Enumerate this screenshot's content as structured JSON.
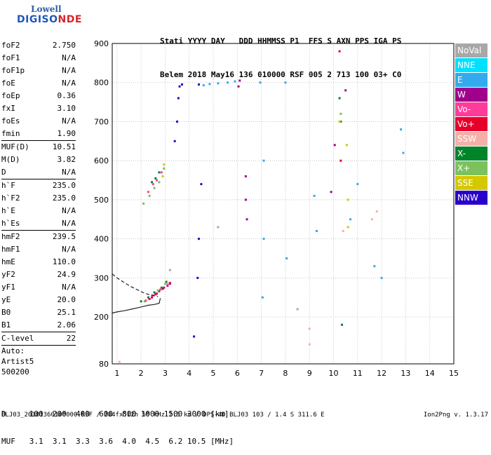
{
  "logo": {
    "line1": "Lowell",
    "line2a": "DIGISO",
    "line2b": "NDE"
  },
  "header": {
    "line1": "Stati YYYY DAY   DDD HHMMSS P1  FFS S AXN PPS IGA PS",
    "line2": "Belem 2018 May16 136 010000 RSF 005 2 713 100 03+ C0"
  },
  "params": [
    [
      {
        "k": "foF2",
        "v": "2.750"
      },
      {
        "k": "foF1",
        "v": "N/A"
      },
      {
        "k": "foF1p",
        "v": "N/A"
      },
      {
        "k": "foE",
        "v": "N/A"
      },
      {
        "k": "foEp",
        "v": "0.36"
      },
      {
        "k": "fxI",
        "v": "3.10"
      },
      {
        "k": "foEs",
        "v": "N/A"
      },
      {
        "k": "fmin",
        "v": "1.90"
      }
    ],
    [
      {
        "k": "MUF(D)",
        "v": "10.51"
      },
      {
        "k": "M(D)",
        "v": "3.82"
      },
      {
        "k": "D",
        "v": "N/A"
      }
    ],
    [
      {
        "k": "h`F",
        "v": "235.0"
      },
      {
        "k": "h`F2",
        "v": "235.0"
      },
      {
        "k": "h`E",
        "v": "N/A"
      },
      {
        "k": "h`Es",
        "v": "N/A"
      }
    ],
    [
      {
        "k": "hmF2",
        "v": "239.5"
      },
      {
        "k": "hmF1",
        "v": "N/A"
      },
      {
        "k": "hmE",
        "v": "110.0"
      },
      {
        "k": "yF2",
        "v": "24.9"
      },
      {
        "k": "yF1",
        "v": "N/A"
      },
      {
        "k": "yE",
        "v": "20.0"
      },
      {
        "k": "B0",
        "v": "25.1"
      },
      {
        "k": "B1",
        "v": "2.06"
      }
    ],
    [
      {
        "k": "C-level",
        "v": "22"
      }
    ]
  ],
  "autoscaling": {
    "label": "Auto:",
    "artist": "Artist5",
    "version": "500200"
  },
  "legend": [
    {
      "label": "NoVal",
      "color": "#a8a8a8"
    },
    {
      "label": "NNE",
      "color": "#00e0ff"
    },
    {
      "label": "E",
      "color": "#33aaee"
    },
    {
      "label": "W",
      "color": "#a0008c"
    },
    {
      "label": "Vo-",
      "color": "#ff3c9a"
    },
    {
      "label": "Vo+",
      "color": "#e8002c"
    },
    {
      "label": "SSW",
      "color": "#f4b0a8"
    },
    {
      "label": "X-",
      "color": "#00842a"
    },
    {
      "label": "X+",
      "color": "#7cc25c"
    },
    {
      "label": "SSE",
      "color": "#d4c800"
    },
    {
      "label": "NNW",
      "color": "#2800cc"
    }
  ],
  "dmuf": {
    "d_row": "D     100  200  400  600  800 1000 1500 3000 [km]",
    "muf_row": "MUF   3.1  3.1  3.3  3.6  4.0  4.5  6.2 10.5 [MHz]"
  },
  "footer": "BLJ03_20181360100000.RSF / 284fx512h 50 kHz 2.5 km / DPS-4D BLJ03 103 / 1.4 S 311.6 E",
  "version_text": "Ion2Png v. 1.3.17",
  "chart_data": {
    "type": "scatter",
    "title": "",
    "xlabel": "",
    "ylabel": "",
    "xlim": [
      0.8,
      15
    ],
    "ylim": [
      80,
      900
    ],
    "x_ticks": [
      1,
      2,
      3,
      4,
      5,
      6,
      7,
      8,
      9,
      10,
      11,
      12,
      13,
      14,
      15
    ],
    "y_ticks": [
      80,
      200,
      300,
      400,
      500,
      600,
      700,
      800,
      900
    ],
    "grid": true,
    "legend_placement": "right",
    "series": [
      {
        "name": "W",
        "color": "#a0008c",
        "points": [
          [
            2.45,
            250
          ],
          [
            2.6,
            258
          ],
          [
            2.75,
            266
          ],
          [
            2.9,
            272
          ],
          [
            3.1,
            280
          ],
          [
            3.2,
            285
          ],
          [
            6.05,
            790
          ],
          [
            6.1,
            805
          ],
          [
            6.35,
            560
          ],
          [
            6.35,
            500
          ],
          [
            6.4,
            450
          ],
          [
            9.9,
            520
          ],
          [
            10.05,
            640
          ],
          [
            10.5,
            780
          ]
        ]
      },
      {
        "name": "NNW",
        "color": "#2800cc",
        "points": [
          [
            3.4,
            650
          ],
          [
            3.5,
            700
          ],
          [
            3.55,
            760
          ],
          [
            3.6,
            790
          ],
          [
            3.7,
            795
          ],
          [
            4.2,
            150
          ],
          [
            4.35,
            300
          ],
          [
            4.4,
            795
          ],
          [
            4.5,
            540
          ],
          [
            4.4,
            400
          ]
        ]
      },
      {
        "name": "E",
        "color": "#33aaee",
        "points": [
          [
            4.6,
            793
          ],
          [
            4.85,
            796
          ],
          [
            5.2,
            798
          ],
          [
            5.6,
            800
          ],
          [
            5.9,
            803
          ],
          [
            6.95,
            800
          ],
          [
            7.1,
            600
          ],
          [
            7.1,
            400
          ],
          [
            7.05,
            250
          ],
          [
            8.0,
            800
          ],
          [
            8.05,
            350
          ],
          [
            9.2,
            510
          ],
          [
            9.3,
            420
          ],
          [
            10.7,
            450
          ],
          [
            11.0,
            540
          ],
          [
            11.7,
            330
          ],
          [
            12.0,
            300
          ],
          [
            12.8,
            680
          ],
          [
            12.9,
            620
          ]
        ]
      },
      {
        "name": "X-",
        "color": "#00842a",
        "points": [
          [
            2.0,
            240
          ],
          [
            2.3,
            250
          ],
          [
            2.55,
            263
          ],
          [
            2.85,
            275
          ],
          [
            3.05,
            290
          ],
          [
            2.45,
            545
          ],
          [
            2.6,
            555
          ],
          [
            2.75,
            570
          ],
          [
            10.25,
            760
          ],
          [
            10.3,
            700
          ],
          [
            10.35,
            180
          ]
        ]
      },
      {
        "name": "X+",
        "color": "#7cc25c",
        "points": [
          [
            2.15,
            240
          ],
          [
            2.45,
            255
          ],
          [
            2.7,
            268
          ],
          [
            3.0,
            285
          ],
          [
            2.1,
            490
          ],
          [
            2.35,
            510
          ],
          [
            2.55,
            530
          ],
          [
            2.75,
            545
          ],
          [
            2.95,
            580
          ],
          [
            10.3,
            720
          ]
        ]
      },
      {
        "name": "Vo-",
        "color": "#ff3c9a",
        "points": [
          [
            2.2,
            242
          ],
          [
            2.5,
            255
          ],
          [
            2.8,
            270
          ],
          [
            3.1,
            283
          ],
          [
            2.3,
            520
          ],
          [
            2.5,
            540
          ],
          [
            2.65,
            550
          ],
          [
            2.85,
            570
          ]
        ]
      },
      {
        "name": "Vo+",
        "color": "#e8002c",
        "points": [
          [
            2.35,
            246
          ],
          [
            2.65,
            260
          ],
          [
            2.95,
            275
          ],
          [
            3.2,
            287
          ],
          [
            10.25,
            880
          ],
          [
            10.3,
            600
          ]
        ]
      },
      {
        "name": "SSE",
        "color": "#d4c800",
        "points": [
          [
            2.9,
            560
          ],
          [
            2.95,
            590
          ],
          [
            10.25,
            700
          ],
          [
            10.55,
            640
          ],
          [
            10.6,
            500
          ],
          [
            10.6,
            430
          ]
        ]
      },
      {
        "name": "SSW",
        "color": "#f4b0a8",
        "points": [
          [
            1.1,
            85
          ],
          [
            9.0,
            170
          ],
          [
            9.0,
            130
          ],
          [
            10.4,
            420
          ],
          [
            11.6,
            450
          ],
          [
            11.8,
            470
          ]
        ]
      },
      {
        "name": "NoVal",
        "color": "#a8a8a8",
        "points": [
          [
            3.2,
            320
          ],
          [
            5.2,
            430
          ],
          [
            8.5,
            220
          ]
        ]
      }
    ],
    "curves": [
      {
        "name": "trace-dashed",
        "style": "dashed",
        "x": [
          0.8,
          1.0,
          1.3,
          1.6,
          1.9,
          2.1,
          2.3,
          2.5,
          2.7
        ],
        "y": [
          310,
          300,
          288,
          277,
          268,
          262,
          258,
          255,
          252
        ]
      },
      {
        "name": "trace-solid",
        "style": "solid",
        "x": [
          0.8,
          1.0,
          1.3,
          1.6,
          1.9,
          2.1,
          2.3,
          2.55,
          2.75,
          2.8
        ],
        "y": [
          210,
          213,
          216,
          220,
          224,
          227,
          230,
          232,
          235,
          248
        ]
      }
    ]
  }
}
